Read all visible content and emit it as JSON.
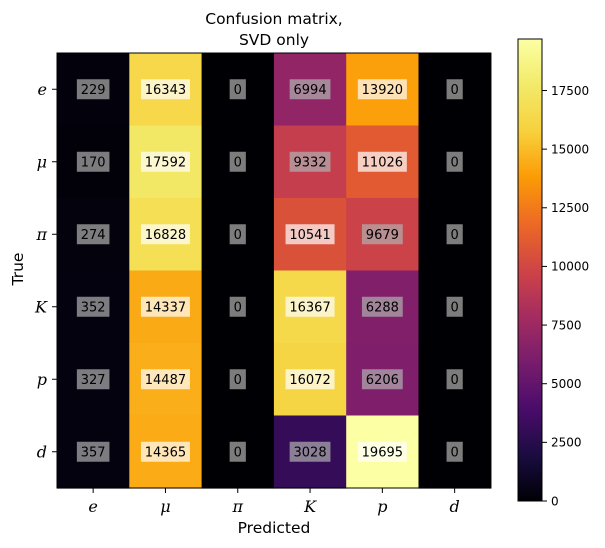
{
  "chart_data": {
    "type": "heatmap",
    "title": [
      "Confusion matrix,",
      "SVD only"
    ],
    "xlabel": "Predicted",
    "ylabel": "True",
    "x_categories": [
      "e",
      "μ",
      "π",
      "K",
      "p",
      "d"
    ],
    "y_categories": [
      "e",
      "μ",
      "π",
      "K",
      "p",
      "d"
    ],
    "values": [
      [
        229,
        16343,
        0,
        6994,
        13920,
        0
      ],
      [
        170,
        17592,
        0,
        9332,
        11026,
        0
      ],
      [
        274,
        16828,
        0,
        10541,
        9679,
        0
      ],
      [
        352,
        14337,
        0,
        16367,
        6288,
        0
      ],
      [
        327,
        14487,
        0,
        16072,
        6206,
        0
      ],
      [
        357,
        14365,
        0,
        3028,
        19695,
        0
      ]
    ],
    "colormap": "inferno",
    "colorbar": {
      "range": [
        0,
        19695
      ],
      "ticks": [
        0,
        2500,
        5000,
        7500,
        10000,
        12500,
        15000,
        17500
      ],
      "tick_labels": [
        "0",
        "2500",
        "5000",
        "7500",
        "10000",
        "12500",
        "15000",
        "17500"
      ]
    },
    "cell_label_bg": {
      "low": "#b0b0b0",
      "high": "#ffffff"
    },
    "grid": false
  }
}
